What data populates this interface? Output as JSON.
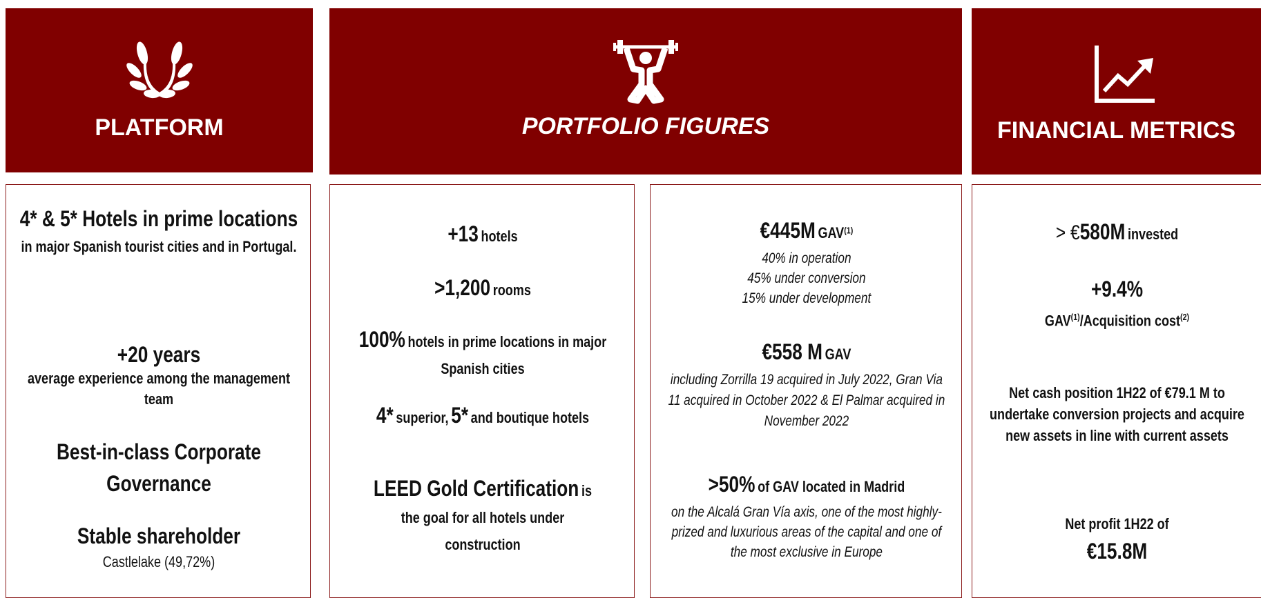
{
  "platform": {
    "title": "PLATFORM",
    "items": [
      {
        "heading": "4* & 5* Hotels in prime locations",
        "text": "in major Spanish tourist cities and in Portugal."
      },
      {
        "heading": "+20 years",
        "text": "average experience among the management team"
      },
      {
        "heading": "Best-in-class Corporate Governance"
      },
      {
        "heading": "Stable shareholder",
        "text": "Castlelake (49,72%)"
      }
    ]
  },
  "portfolio": {
    "title": "PORTFOLIO FIGURES",
    "figures": [
      [
        "+13",
        "hotels"
      ],
      [
        ">1,200",
        "rooms"
      ],
      [
        "100%",
        "hotels in prime locations in major Spanish cities"
      ],
      [
        "4*",
        "superior,",
        "5*",
        "and boutique hotels"
      ],
      [
        "LEED Gold Certification",
        "is the goal for all hotels under construction"
      ]
    ],
    "valuation": [
      {
        "value": "€445M",
        "label": "GAV",
        "note_ref": "(1)",
        "details": [
          "40% in operation",
          "45% under conversion",
          "15% under development"
        ]
      },
      {
        "value": "€558 M",
        "label": "GAV",
        "details": [
          "including Zorrilla 19 acquired in July 2022, Gran Via 11 acquired in October 2022 & El Palmar acquired in November 2022"
        ]
      },
      {
        "value": ">50%",
        "label": "of GAV located in Madrid",
        "details": [
          "on the Alcalá Gran Vía axis, one of the most highly-prized and luxurious areas of the capital and one of the most exclusive in Europe"
        ]
      }
    ]
  },
  "financial": {
    "title": "FINANCIAL METRICS",
    "invested": {
      "prefix": "> €",
      "value": "580M",
      "label": "invested"
    },
    "return": {
      "value": "+9.4%",
      "label": [
        "GAV",
        "(1)",
        "/Acquisition cost",
        "(2)"
      ]
    },
    "cash": "Net cash position 1H22 of €79.1 M to undertake conversion projects and acquire new assets in line with current assets",
    "profit": {
      "label": "Net profit 1H22 of",
      "value": "€15.8M"
    }
  }
}
